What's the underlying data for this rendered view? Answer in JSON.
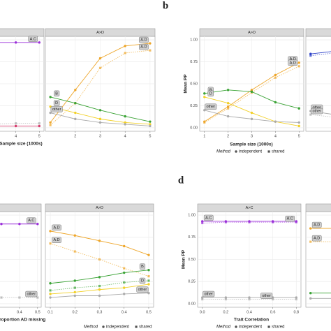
{
  "panel_labels": [
    "b",
    "d"
  ],
  "legend": {
    "title": "Method",
    "items": [
      "independent",
      "shared"
    ]
  },
  "chart_data": [
    {
      "type": "line",
      "x": [
        1,
        2,
        3,
        4,
        5
      ],
      "xlim": [
        0.8,
        5.2
      ],
      "ylim": [
        -0.04,
        1.04
      ],
      "xticks": [
        4,
        5
      ],
      "yticks": [
        0,
        0.25,
        0.5,
        0.75,
        1
      ],
      "series": [
        {
          "name": "A.C",
          "color": "#9b30d9",
          "values": [
            0.95,
            0.96,
            0.97,
            0.97,
            0.97
          ]
        },
        {
          "color": "#d43a6b",
          "values": [
            0.02,
            0.02,
            0.02,
            0.02,
            0.02
          ]
        },
        {
          "color": "#aaaaaa",
          "dashed": true,
          "values": [
            0.04,
            0.04,
            0.04,
            0.05,
            0.05
          ]
        }
      ]
    },
    {
      "type": "line",
      "strip": "A>D",
      "x_label": "Sample size (1000s)",
      "x": [
        1,
        2,
        3,
        4,
        5
      ],
      "xlim": [
        0.8,
        5.2
      ],
      "ylim": [
        -0.04,
        1.04
      ],
      "xticks": [
        2,
        3,
        4,
        5
      ],
      "yticks": [
        0,
        0.25,
        0.5,
        0.75,
        1
      ],
      "series": [
        {
          "name": "A.D",
          "color": "#eea62a",
          "values": [
            0.06,
            0.43,
            0.79,
            0.93,
            0.96
          ]
        },
        {
          "name": "A.D",
          "color": "#eea62a",
          "dashed": true,
          "values": [
            0.03,
            0.28,
            0.68,
            0.85,
            0.88
          ]
        },
        {
          "name": "B",
          "color": "#3aa335",
          "values": [
            0.35,
            0.28,
            0.2,
            0.13,
            0.07
          ]
        },
        {
          "name": "D",
          "color": "#f2d027",
          "values": [
            0.24,
            0.17,
            0.1,
            0.06,
            0.04
          ]
        },
        {
          "name": "other",
          "color": "#aaaaaa",
          "values": [
            0.17,
            0.1,
            0.06,
            0.04,
            0.02
          ]
        }
      ]
    },
    {
      "type": "line",
      "strip": "A>D",
      "x_label": "Sample size (1000s)",
      "y_label": "Mean PP",
      "x": [
        1,
        2,
        3,
        4,
        5
      ],
      "xlim": [
        0.8,
        5.2
      ],
      "ylim": [
        -0.04,
        1.04
      ],
      "xticks": [
        1,
        2,
        3,
        4,
        5
      ],
      "yticks": [
        {
          "value": 0,
          "label": "0.00"
        },
        {
          "value": 0.25,
          "label": "0.25"
        },
        {
          "value": 0.5,
          "label": "0.50"
        },
        {
          "value": 0.75,
          "label": "0.75"
        },
        {
          "value": 1,
          "label": "1.00"
        }
      ],
      "series": [
        {
          "name": "A.D",
          "color": "#eea62a",
          "values": [
            0.07,
            0.24,
            0.43,
            0.6,
            0.74
          ]
        },
        {
          "name": "A.D",
          "color": "#eea62a",
          "dashed": true,
          "values": [
            0.06,
            0.22,
            0.4,
            0.57,
            0.7
          ]
        },
        {
          "name": "B",
          "color": "#3aa335",
          "values": [
            0.39,
            0.43,
            0.41,
            0.29,
            0.22
          ]
        },
        {
          "name": "D",
          "color": "#f2d027",
          "values": [
            0.35,
            0.28,
            0.17,
            0.07,
            0.02
          ]
        },
        {
          "name": "other",
          "color": "#aaaaaa",
          "values": [
            0.2,
            0.13,
            0.1,
            0.07,
            0.06
          ]
        }
      ]
    },
    {
      "type": "line",
      "x": [
        1,
        2,
        3,
        4,
        5
      ],
      "xlim": [
        0.8,
        5.2
      ],
      "ylim": [
        -0.04,
        1.04
      ],
      "yticks": [
        0,
        0.25,
        0.5,
        0.75,
        1
      ],
      "series": [
        {
          "color": "#2a3fc7",
          "values": [
            0.84,
            0.87,
            0.9,
            0.92,
            0.94
          ]
        },
        {
          "color": "#2a3fc7",
          "dashed": true,
          "values": [
            0.82,
            0.85,
            0.88,
            0.9,
            0.92
          ]
        },
        {
          "name": "other",
          "color": "#aaaaaa",
          "values": [
            0.19,
            0.15,
            0.12,
            0.1,
            0.08
          ]
        },
        {
          "name": "other",
          "color": "#aaaaaa",
          "dashed": true,
          "values": [
            0.15,
            0.12,
            0.1,
            0.08,
            0.07
          ]
        }
      ]
    },
    {
      "type": "line",
      "x": [
        0.1,
        0.2,
        0.3,
        0.4,
        0.5
      ],
      "xlim": [
        0.08,
        0.52
      ],
      "ylim": [
        -0.04,
        1.04
      ],
      "xticks": [
        0.4,
        0.5
      ],
      "yticks": [
        0,
        0.25,
        0.5,
        0.75,
        1
      ],
      "series": [
        {
          "name": "A.C",
          "color": "#9b30d9",
          "values": [
            0.9,
            0.9,
            0.9,
            0.9,
            0.9
          ]
        },
        {
          "name": "other",
          "color": "#aaaaaa",
          "dashed": true,
          "values": [
            0.07,
            0.07,
            0.07,
            0.07,
            0.07
          ]
        }
      ]
    },
    {
      "type": "line",
      "strip": "A>D",
      "x_label": "Proportion AD missing",
      "x": [
        0.1,
        0.2,
        0.3,
        0.4,
        0.5
      ],
      "xlim": [
        0.08,
        0.52
      ],
      "ylim": [
        -0.04,
        1.04
      ],
      "xticks": [
        0.1,
        0.2,
        0.3,
        0.4,
        0.5
      ],
      "yticks": [
        0,
        0.25,
        0.5,
        0.75,
        1
      ],
      "series": [
        {
          "name": "A.D",
          "color": "#eea62a",
          "values": [
            0.82,
            0.77,
            0.71,
            0.65,
            0.55
          ]
        },
        {
          "name": "A.D",
          "color": "#eea62a",
          "dashed": true,
          "values": [
            0.68,
            0.59,
            0.5,
            0.4,
            0.31
          ]
        },
        {
          "name": "B",
          "color": "#3aa335",
          "values": [
            0.23,
            0.26,
            0.3,
            0.35,
            0.38
          ]
        },
        {
          "color": "#3aa335",
          "dashed": true,
          "values": [
            0.15,
            0.18,
            0.2,
            0.24,
            0.26
          ]
        },
        {
          "name": "D",
          "color": "#f2d027",
          "values": [
            0.11,
            0.13,
            0.16,
            0.18,
            0.22
          ]
        },
        {
          "name": "other",
          "color": "#aaaaaa",
          "values": [
            0.07,
            0.09,
            0.09,
            0.11,
            0.12
          ]
        }
      ]
    },
    {
      "type": "line",
      "strip": "A>C",
      "x_label": "Trait Correlation",
      "y_label": "Mean PP",
      "x": [
        0,
        0.2,
        0.4,
        0.6,
        0.8
      ],
      "xlim": [
        -0.04,
        0.84
      ],
      "ylim": [
        -0.04,
        1.04
      ],
      "xticks": [
        {
          "value": 0,
          "label": "0.0"
        },
        0.2,
        0.4,
        0.6,
        0.8
      ],
      "yticks": [
        {
          "value": 0,
          "label": "0.00"
        },
        {
          "value": 0.25,
          "label": "0.25"
        },
        {
          "value": 0.5,
          "label": "0.50"
        },
        {
          "value": 0.75,
          "label": "0.75"
        },
        {
          "value": 1,
          "label": "1.00"
        }
      ],
      "series": [
        {
          "name": "A.C",
          "color": "#9b30d9",
          "values": [
            0.93,
            0.93,
            0.93,
            0.93,
            0.93
          ]
        },
        {
          "name": "A.C",
          "color": "#9b30d9",
          "dashed": true,
          "values": [
            0.91,
            0.92,
            0.92,
            0.92,
            0.92
          ]
        },
        {
          "name": "other",
          "color": "#aaaaaa",
          "values": [
            0.07,
            0.07,
            0.07,
            0.07,
            0.07
          ]
        },
        {
          "name": "other",
          "color": "#aaaaaa",
          "dashed": true,
          "values": [
            0.05,
            0.05,
            0.05,
            0.05,
            0.05
          ]
        }
      ]
    },
    {
      "type": "line",
      "x": [
        0,
        0.2,
        0.4,
        0.6,
        0.8
      ],
      "xlim": [
        -0.04,
        0.84
      ],
      "ylim": [
        -0.04,
        1.04
      ],
      "yticks": [
        0,
        0.25,
        0.5,
        0.75,
        1
      ],
      "series": [
        {
          "name": "A.D",
          "color": "#eea62a",
          "values": [
            0.85,
            0.85,
            0.86,
            0.86,
            0.87
          ]
        },
        {
          "name": "A.D",
          "color": "#eea62a",
          "dashed": true,
          "values": [
            0.7,
            0.7,
            0.71,
            0.71,
            0.72
          ]
        },
        {
          "color": "#3aa335",
          "values": [
            0.12,
            0.12,
            0.12,
            0.13,
            0.13
          ]
        },
        {
          "color": "#aaaaaa",
          "values": [
            0.06,
            0.06,
            0.06,
            0.06,
            0.06
          ]
        }
      ]
    }
  ]
}
